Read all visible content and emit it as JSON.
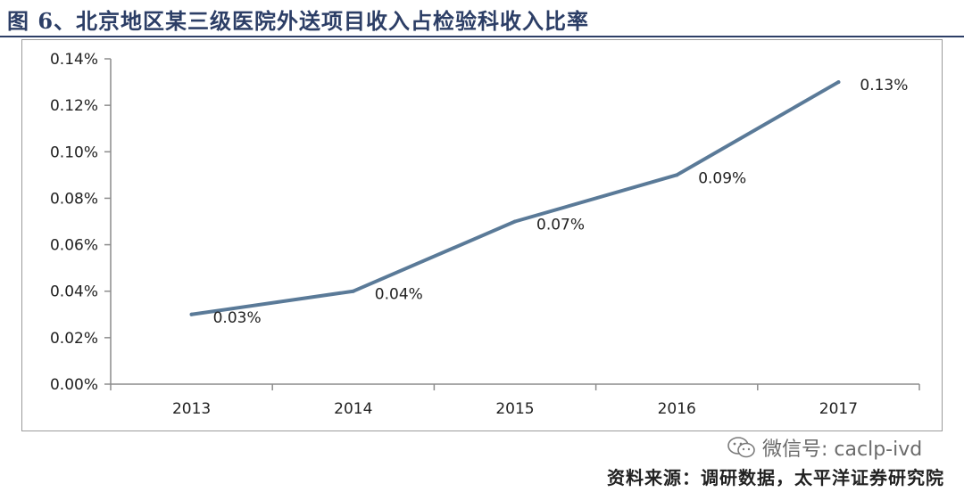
{
  "figure": {
    "title": "图 6、北京地区某三级医院外送项目收入占检验科收入比率",
    "source": "资料来源：调研数据，太平洋证券研究院"
  },
  "watermark": {
    "icon": "wechat-icon",
    "text": "微信号: caclp-ivd"
  },
  "chart_data": {
    "type": "line",
    "title": "",
    "xlabel": "",
    "ylabel": "",
    "categories": [
      "2013",
      "2014",
      "2015",
      "2016",
      "2017"
    ],
    "series": [
      {
        "values": [
          0.03,
          0.04,
          0.07,
          0.09,
          0.13
        ],
        "data_labels": [
          "0.03%",
          "0.04%",
          "0.07%",
          "0.09%",
          "0.13%"
        ],
        "color": "#5a7a98"
      }
    ],
    "yunit": "%",
    "ylim": [
      0,
      0.14
    ],
    "yticks": [
      0.0,
      0.02,
      0.04,
      0.06,
      0.08,
      0.1,
      0.12,
      0.14
    ],
    "ytick_labels": [
      "0.00%",
      "0.02%",
      "0.04%",
      "0.06%",
      "0.08%",
      "0.10%",
      "0.12%",
      "0.14%"
    ],
    "grid": false,
    "legend": "none",
    "axis_color": "#8c8c8c"
  }
}
